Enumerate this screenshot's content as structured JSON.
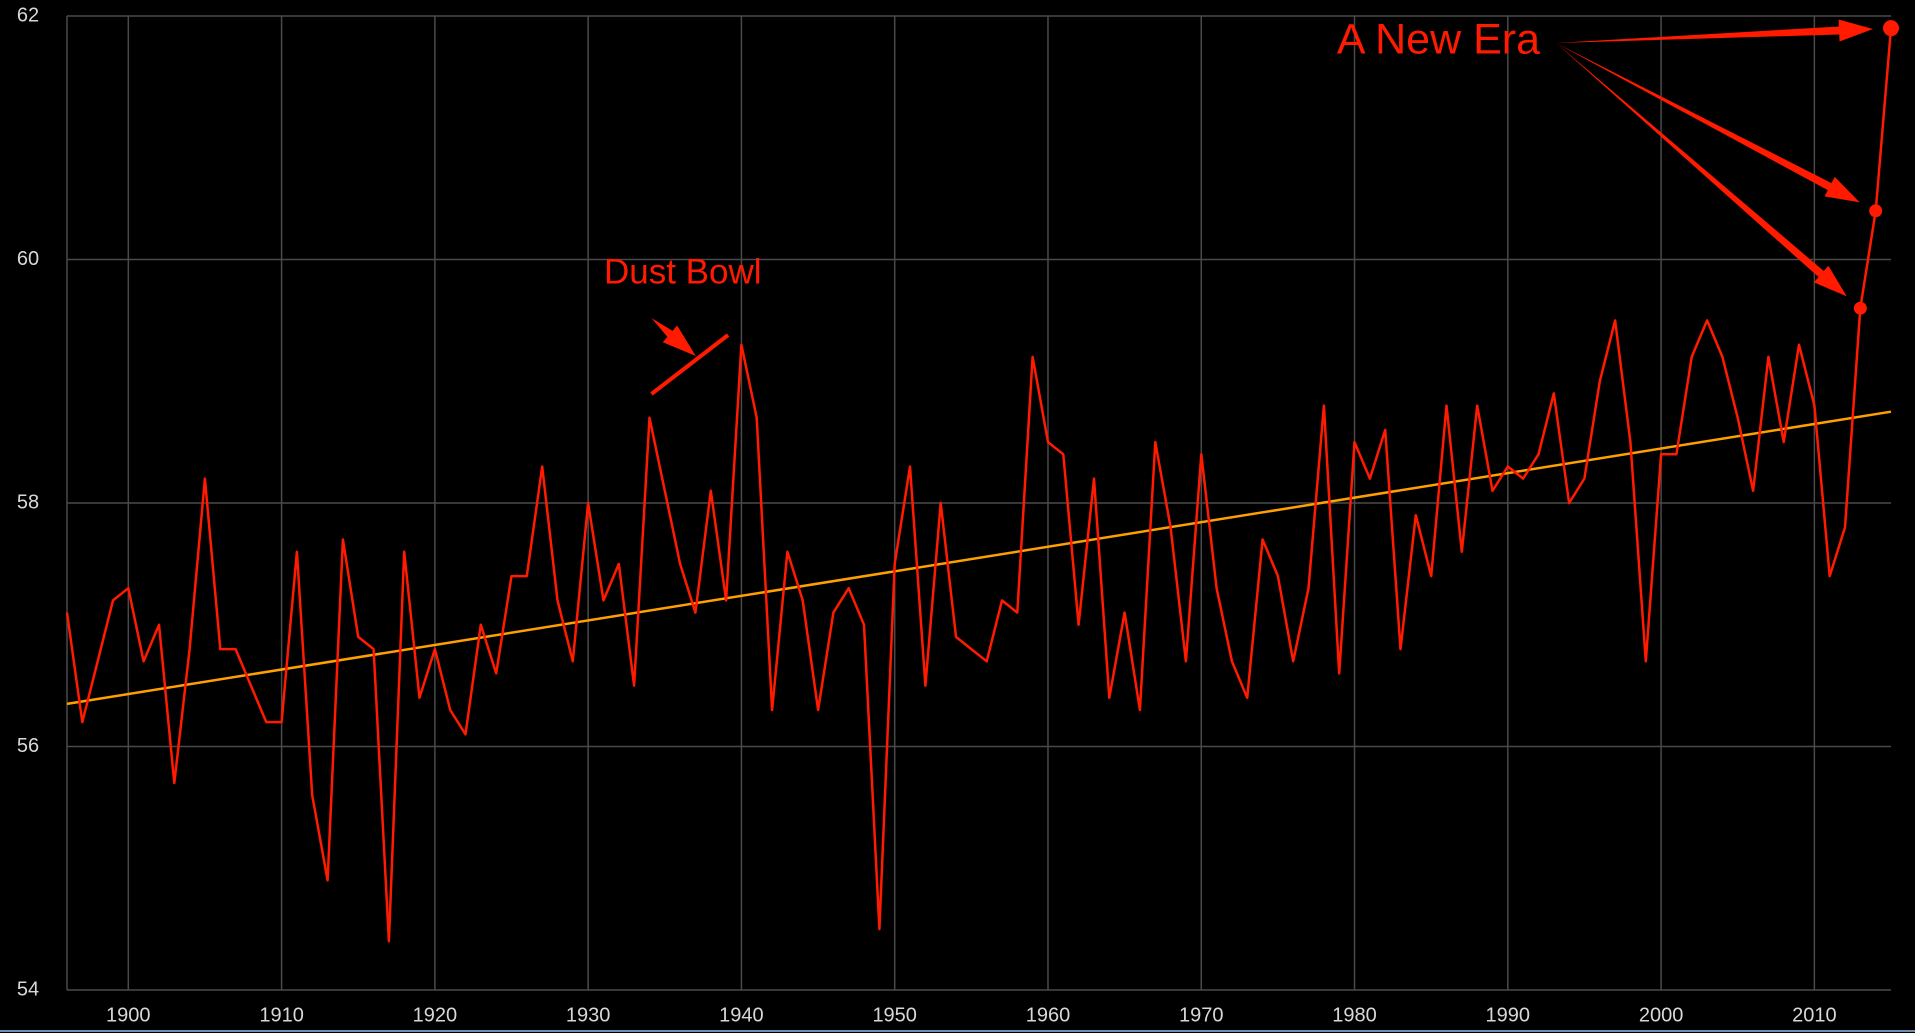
{
  "chart_data": {
    "type": "line",
    "x": [
      1896,
      1897,
      1898,
      1899,
      1900,
      1901,
      1902,
      1903,
      1904,
      1905,
      1906,
      1907,
      1908,
      1909,
      1910,
      1911,
      1912,
      1913,
      1914,
      1915,
      1916,
      1917,
      1918,
      1919,
      1920,
      1921,
      1922,
      1923,
      1924,
      1925,
      1926,
      1927,
      1928,
      1929,
      1930,
      1931,
      1932,
      1933,
      1934,
      1935,
      1936,
      1937,
      1938,
      1939,
      1940,
      1941,
      1942,
      1943,
      1944,
      1945,
      1946,
      1947,
      1948,
      1949,
      1950,
      1951,
      1952,
      1953,
      1954,
      1955,
      1956,
      1957,
      1958,
      1959,
      1960,
      1961,
      1962,
      1963,
      1964,
      1965,
      1966,
      1967,
      1968,
      1969,
      1970,
      1971,
      1972,
      1973,
      1974,
      1975,
      1976,
      1977,
      1978,
      1979,
      1980,
      1981,
      1982,
      1983,
      1984,
      1985,
      1986,
      1987,
      1988,
      1989,
      1990,
      1991,
      1992,
      1993,
      1994,
      1995,
      1996,
      1997,
      1998,
      1999,
      2000,
      2001,
      2002,
      2003,
      2004,
      2005,
      2006,
      2007,
      2008,
      2009,
      2010,
      2011,
      2012,
      2013,
      2014,
      2015
    ],
    "values": [
      57.1,
      56.2,
      56.7,
      57.2,
      57.3,
      56.7,
      57.0,
      55.7,
      56.8,
      58.2,
      56.8,
      56.8,
      56.5,
      56.2,
      56.2,
      57.6,
      55.6,
      54.9,
      57.7,
      56.9,
      56.8,
      54.4,
      57.6,
      56.4,
      56.8,
      56.3,
      56.1,
      57.0,
      56.6,
      57.4,
      57.4,
      58.3,
      57.2,
      56.7,
      58.0,
      57.2,
      57.5,
      56.5,
      58.7,
      58.1,
      57.5,
      57.1,
      58.1,
      57.2,
      59.3,
      58.7,
      56.3,
      57.6,
      57.2,
      56.3,
      57.1,
      57.3,
      57.0,
      54.5,
      57.5,
      58.3,
      56.5,
      58.0,
      56.9,
      56.8,
      56.7,
      57.2,
      57.1,
      59.2,
      58.5,
      58.4,
      57.0,
      58.2,
      56.4,
      57.1,
      56.3,
      58.5,
      57.8,
      56.7,
      58.4,
      57.3,
      56.7,
      56.4,
      57.7,
      57.4,
      56.7,
      57.3,
      58.8,
      56.6,
      58.5,
      58.2,
      58.6,
      56.8,
      57.9,
      57.4,
      58.8,
      57.6,
      58.8,
      58.1,
      58.3,
      58.2,
      58.4,
      58.9,
      58.0,
      58.2,
      59.0,
      59.5,
      58.5,
      56.7,
      58.4,
      58.4,
      59.2,
      59.5,
      59.2,
      58.7,
      58.1,
      59.2,
      58.5,
      59.3,
      58.8,
      57.4,
      57.8,
      59.6,
      60.4,
      61.9
    ],
    "color": "#ff1a00",
    "trend_line": {
      "x": [
        1896,
        2015
      ],
      "values": [
        56.35,
        58.75
      ],
      "color": "#ffa000"
    },
    "xlim": [
      1896,
      2015
    ],
    "xticks": [
      1900,
      1910,
      1920,
      1930,
      1940,
      1950,
      1960,
      1970,
      1980,
      1990,
      2000,
      2010
    ],
    "ylim": [
      54,
      62
    ],
    "yticks": [
      54,
      56,
      58,
      60,
      62
    ],
    "grid": true,
    "annotations": [
      {
        "text": "Dust Bowl",
        "x": [
          1934,
          1939
        ]
      },
      {
        "text": "A New Era",
        "x": [
          2013,
          2014,
          2015
        ]
      }
    ]
  }
}
